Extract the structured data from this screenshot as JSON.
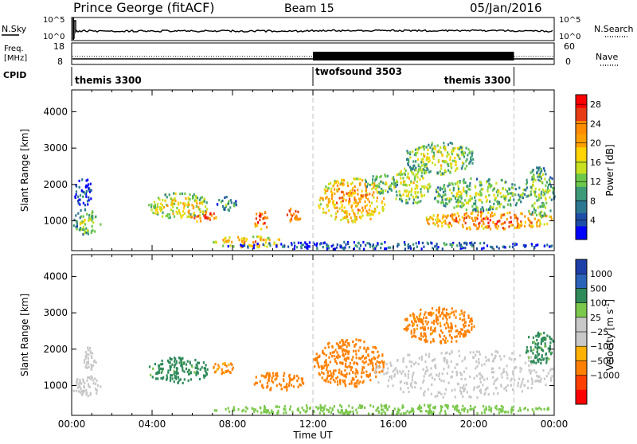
{
  "header": {
    "site": "Prince George (fitACF)",
    "beam": "Beam 15",
    "date": "05/Jan/2016"
  },
  "top_panels": {
    "nsky_label": "N.Sky",
    "nsky_ticks": [
      "10^5",
      "10^0"
    ],
    "nsearch_label": "N.Search",
    "nsearch_ticks": [
      "10^5",
      "10^0"
    ],
    "freq_label": [
      "Freq.",
      "[MHz]"
    ],
    "freq_ticks": [
      "18",
      "8"
    ],
    "nave_label": "Nave",
    "nave_ticks": [
      "60",
      "0"
    ],
    "cpid_label": "CPID",
    "cpid_segments": [
      {
        "name": "themis 3300",
        "start": 0,
        "end": 12
      },
      {
        "name": "twofsound 3503",
        "start": 12,
        "end": 22
      },
      {
        "name": "themis 3300",
        "start": 22,
        "end": 24
      }
    ]
  },
  "colors": {
    "power_scale": [
      "#ff0000",
      "#e83c14",
      "#ff8c00",
      "#ffa000",
      "#ffd400",
      "#c8e020",
      "#6cc84a",
      "#3c9a78",
      "#2c7890",
      "#1e4ea8",
      "#0000ff"
    ],
    "velocity_scale": [
      "#1f3fa8",
      "#2b63b8",
      "#2f8a5a",
      "#7cc84c",
      "#c8c8c8",
      "#c8c8c8",
      "#ffb000",
      "#ff8000",
      "#ff4000",
      "#ff0000"
    ]
  },
  "chart_data": [
    {
      "type": "heatmap",
      "title": "",
      "xlabel": "",
      "ylabel": "Slant Range [km]",
      "xlim": [
        0,
        24
      ],
      "ylim": [
        180,
        4600
      ],
      "yticks": [
        1000,
        2000,
        3000,
        4000
      ],
      "colorbar": {
        "label": "Power [dB]",
        "ticks": [
          "4",
          "8",
          "12",
          "16",
          "20",
          "24",
          "28"
        ],
        "range": [
          0,
          30
        ]
      },
      "blobs": [
        {
          "t0": 0.05,
          "t1": 1.4,
          "r0": 650,
          "r1": 1350,
          "v": 14
        },
        {
          "t0": 0.1,
          "t1": 1.0,
          "r0": 1450,
          "r1": 2200,
          "v": 6
        },
        {
          "t0": 3.8,
          "t1": 6.8,
          "r0": 1100,
          "r1": 1800,
          "v": 18
        },
        {
          "t0": 5.8,
          "t1": 7.2,
          "r0": 1000,
          "r1": 1300,
          "v": 27
        },
        {
          "t0": 7.2,
          "t1": 8.2,
          "r0": 1300,
          "r1": 1700,
          "v": 12
        },
        {
          "t0": 7.0,
          "t1": 10.5,
          "r0": 300,
          "r1": 600,
          "v": 22
        },
        {
          "t0": 9.0,
          "t1": 9.8,
          "r0": 800,
          "r1": 1300,
          "v": 26
        },
        {
          "t0": 10.6,
          "t1": 11.4,
          "r0": 1000,
          "r1": 1400,
          "v": 26
        },
        {
          "t0": 12.2,
          "t1": 15.6,
          "r0": 1000,
          "r1": 2200,
          "v": 22
        },
        {
          "t0": 14.5,
          "t1": 16.2,
          "r0": 1800,
          "r1": 2300,
          "v": 14
        },
        {
          "t0": 15.8,
          "t1": 17.8,
          "r0": 1500,
          "r1": 2500,
          "v": 17
        },
        {
          "t0": 16.5,
          "t1": 20.0,
          "r0": 2300,
          "r1": 3200,
          "v": 16
        },
        {
          "t0": 17.5,
          "t1": 24.0,
          "r0": 800,
          "r1": 1300,
          "v": 25
        },
        {
          "t0": 18.0,
          "t1": 22.5,
          "r0": 1300,
          "r1": 2200,
          "v": 15
        },
        {
          "t0": 22.5,
          "t1": 24.0,
          "r0": 1100,
          "r1": 2500,
          "v": 14
        },
        {
          "t0": 7.5,
          "t1": 24.0,
          "r0": 250,
          "r1": 450,
          "v": 8
        }
      ]
    },
    {
      "type": "heatmap",
      "title": "",
      "xlabel": "Time UT",
      "ylabel": "Slant Range [km]",
      "xlim": [
        0,
        24
      ],
      "ylim": [
        180,
        4600
      ],
      "xticks": [
        "00:00",
        "04:00",
        "08:00",
        "12:00",
        "16:00",
        "20:00",
        "00:00"
      ],
      "yticks": [
        1000,
        2000,
        3000,
        4000
      ],
      "colorbar": {
        "label": "Velocity [m s^-1]",
        "ticks": [
          "1000",
          "500",
          "100",
          "25",
          "−25",
          "−100",
          "−500",
          "−1000"
        ]
      },
      "blobs": [
        {
          "t0": 0.0,
          "t1": 1.4,
          "r0": 700,
          "r1": 1300,
          "v": 0
        },
        {
          "t0": 0.5,
          "t1": 1.2,
          "r0": 1400,
          "r1": 2100,
          "v": 0
        },
        {
          "t0": 3.8,
          "t1": 6.8,
          "r0": 1100,
          "r1": 1800,
          "v": 150
        },
        {
          "t0": 7.0,
          "t1": 8.0,
          "r0": 1300,
          "r1": 1700,
          "v": -120
        },
        {
          "t0": 9.0,
          "t1": 11.5,
          "r0": 900,
          "r1": 1400,
          "v": -300
        },
        {
          "t0": 12.0,
          "t1": 15.5,
          "r0": 1000,
          "r1": 2300,
          "v": -250
        },
        {
          "t0": 15.0,
          "t1": 24.0,
          "r0": 700,
          "r1": 2000,
          "v": 0
        },
        {
          "t0": 16.5,
          "t1": 20.0,
          "r0": 2200,
          "r1": 3200,
          "v": -150
        },
        {
          "t0": 22.5,
          "t1": 24.0,
          "r0": 1600,
          "r1": 2500,
          "v": 150
        },
        {
          "t0": 7.0,
          "t1": 24.0,
          "r0": 250,
          "r1": 500,
          "v": 60
        }
      ]
    }
  ]
}
